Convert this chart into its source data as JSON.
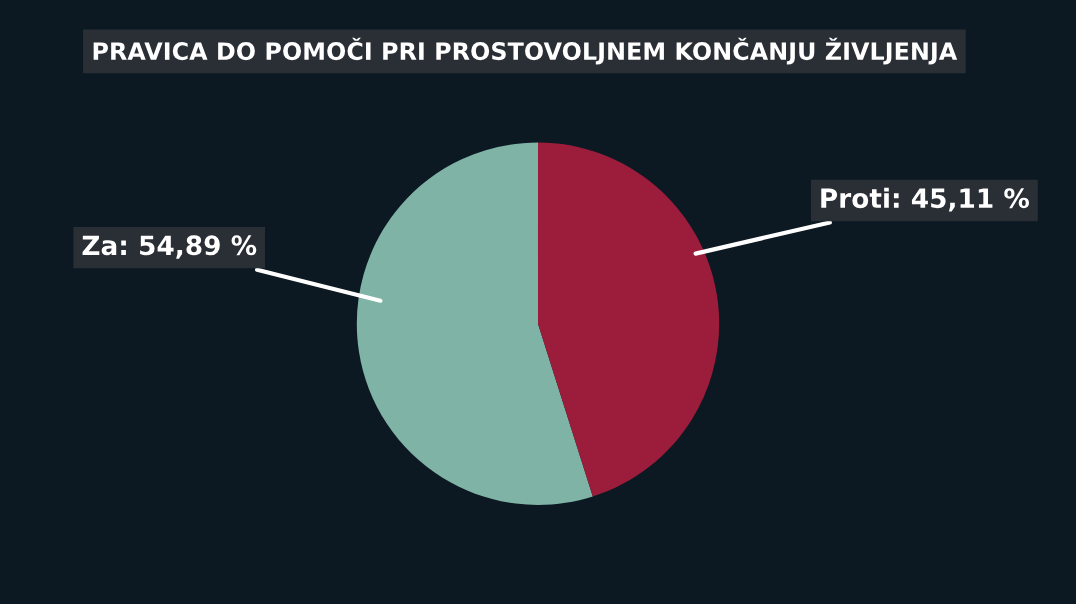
{
  "chart_data": {
    "type": "pie",
    "title": "PRAVICA DO POMOČI PRI PROSTOVOLJNEM KONČANJU ŽIVLJENJA",
    "categories": [
      "Za",
      "Proti"
    ],
    "values": [
      54.89,
      45.11
    ],
    "colors": [
      "#7fb3a6",
      "#9c1d3b"
    ],
    "value_labels": [
      "54,89 %",
      "45,11 %"
    ],
    "legend": false
  }
}
